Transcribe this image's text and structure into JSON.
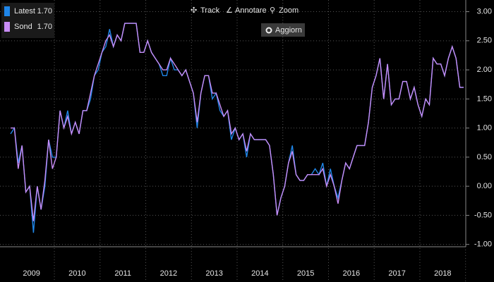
{
  "chart_data": {
    "type": "line",
    "toolbar": {
      "track": "Track",
      "annotate": "Annotare",
      "zoom": "Zoom",
      "refresh": "Aggiorn"
    },
    "year_labels": [
      "2009",
      "2010",
      "2011",
      "2012",
      "2013",
      "2014",
      "2015",
      "2016",
      "2017",
      "2018"
    ],
    "ylim": [
      -1.04,
      3.14
    ],
    "yticks": [
      {
        "value": 3,
        "label": "3.00"
      },
      {
        "value": 2.5,
        "label": "2.50"
      },
      {
        "value": 2,
        "label": "2.00"
      },
      {
        "value": 1.5,
        "label": "1.50"
      },
      {
        "value": 1,
        "label": "1.00"
      },
      {
        "value": 0.5,
        "label": "0.50"
      },
      {
        "value": 0,
        "label": "0.00"
      },
      {
        "value": -0.5,
        "label": "-0.50"
      },
      {
        "value": -1,
        "label": "-1.00"
      }
    ],
    "grid": true,
    "series": [
      {
        "name": "Latest",
        "color": "#1f86e8",
        "legend_value": {
          "value": 1.7,
          "label": "1.70"
        },
        "values": [
          0.9,
          1.0,
          0.4,
          0.7,
          -0.1,
          0.0,
          -0.8,
          0.0,
          -0.4,
          0.0,
          0.8,
          0.5,
          0.5,
          1.3,
          1.0,
          1.3,
          0.9,
          1.1,
          0.9,
          1.3,
          1.3,
          1.5,
          1.9,
          2.0,
          2.3,
          2.4,
          2.7,
          2.4,
          2.6,
          2.5,
          2.8,
          2.8,
          2.8,
          2.8,
          2.3,
          2.3,
          2.5,
          2.3,
          2.2,
          2.1,
          1.9,
          1.9,
          2.2,
          2.0,
          2.0,
          1.9,
          2.0,
          1.8,
          1.6,
          1.0,
          1.6,
          1.9,
          1.9,
          1.5,
          1.6,
          1.3,
          1.2,
          1.3,
          0.8,
          1.0,
          0.8,
          0.9,
          0.5,
          0.9,
          0.8,
          0.8,
          0.8,
          0.8,
          0.7,
          0.2,
          -0.5,
          -0.2,
          0.0,
          0.4,
          0.7,
          0.2,
          0.1,
          0.1,
          0.2,
          0.2,
          0.3,
          0.2,
          0.4,
          0.0,
          0.3,
          0.0,
          -0.2,
          0.1,
          0.4,
          0.3,
          0.5,
          0.7,
          0.7,
          0.7,
          1.1,
          1.7,
          1.9,
          2.2,
          1.5,
          2.1,
          1.4,
          1.5,
          1.5,
          1.8,
          1.8,
          1.5,
          1.7,
          1.4,
          1.2,
          1.5,
          1.4,
          2.2,
          2.1,
          2.1,
          1.9,
          2.2,
          2.4,
          2.2,
          1.7,
          1.7
        ]
      },
      {
        "name": "Sond",
        "color": "#c88cf5",
        "legend_value": {
          "value": 1.7,
          "label": "1.70"
        },
        "values": [
          1.0,
          1.0,
          0.3,
          0.7,
          -0.1,
          0.0,
          -0.6,
          0.0,
          -0.4,
          0.1,
          0.8,
          0.3,
          0.5,
          1.3,
          1.0,
          1.2,
          0.9,
          1.1,
          0.9,
          1.3,
          1.3,
          1.6,
          1.9,
          2.1,
          2.3,
          2.5,
          2.6,
          2.4,
          2.6,
          2.5,
          2.8,
          2.8,
          2.8,
          2.8,
          2.3,
          2.3,
          2.5,
          2.3,
          2.2,
          2.1,
          2.0,
          2.0,
          2.2,
          2.1,
          2.0,
          1.9,
          2.0,
          1.8,
          1.6,
          1.1,
          1.6,
          1.9,
          1.9,
          1.6,
          1.6,
          1.4,
          1.2,
          1.3,
          0.9,
          1.0,
          0.8,
          0.9,
          0.6,
          0.9,
          0.8,
          0.8,
          0.8,
          0.8,
          0.7,
          0.2,
          -0.5,
          -0.2,
          0.0,
          0.4,
          0.6,
          0.2,
          0.1,
          0.1,
          0.2,
          0.2,
          0.2,
          0.2,
          0.3,
          0.0,
          0.2,
          0.0,
          -0.3,
          0.1,
          0.4,
          0.3,
          0.5,
          0.7,
          0.7,
          0.7,
          1.1,
          1.7,
          1.9,
          2.2,
          1.5,
          2.1,
          1.4,
          1.5,
          1.5,
          1.8,
          1.8,
          1.5,
          1.7,
          1.4,
          1.2,
          1.5,
          1.4,
          2.2,
          2.1,
          2.1,
          1.9,
          2.2,
          2.4,
          2.2,
          1.7,
          1.7
        ]
      }
    ]
  }
}
